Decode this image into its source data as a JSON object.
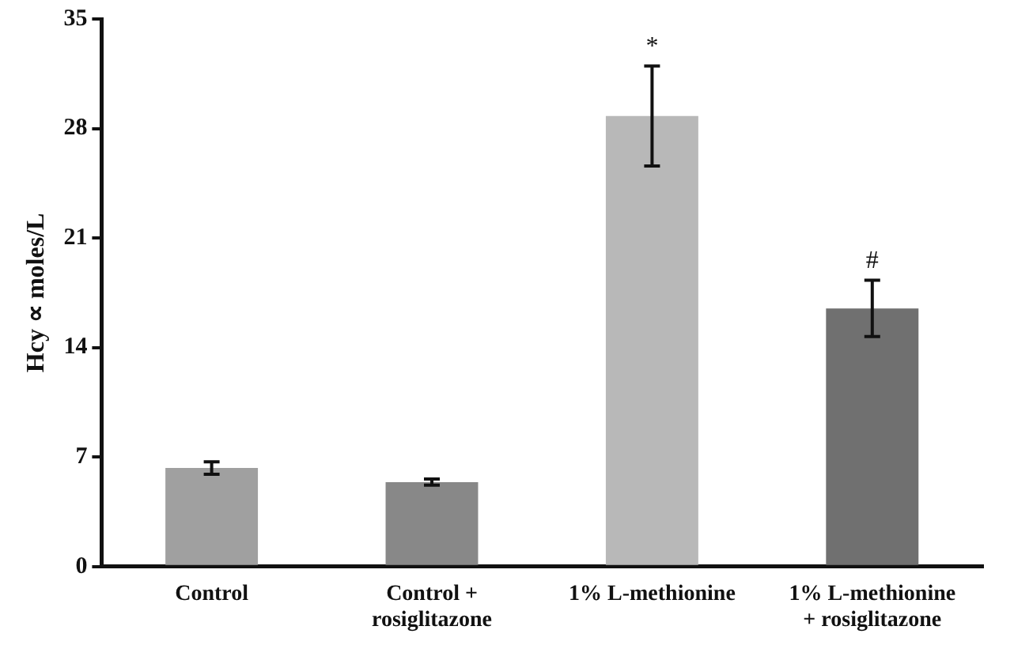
{
  "chart_data": {
    "type": "bar",
    "ylabel": "Hcy ∝ moles/L",
    "categories": [
      "Control",
      "Control +\nrosiglitazone",
      "1% L-methionine",
      "1% L-methionine\n+ rosiglitazone"
    ],
    "values": [
      6.3,
      5.4,
      28.8,
      16.5
    ],
    "errors": [
      0.4,
      0.2,
      3.2,
      1.8
    ],
    "colors": [
      "#a0a0a0",
      "#888888",
      "#b8b8b8",
      "#707070"
    ],
    "ylim": [
      0,
      35
    ],
    "yticks": [
      0,
      7,
      14,
      21,
      28,
      35
    ],
    "grid": false,
    "legend": false,
    "annotations": [
      {
        "text": "*",
        "x": "1% L-methionine",
        "y": 32.4
      },
      {
        "text": "#",
        "x": "1% L-methionine\n+ rosiglitazone",
        "y": 18.7
      }
    ]
  }
}
